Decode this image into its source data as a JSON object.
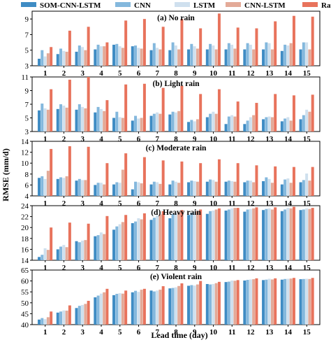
{
  "legend": [
    {
      "name": "SOM-CNN-LSTM",
      "color": "#3f8cc4"
    },
    {
      "name": "CNN",
      "color": "#84b8dd"
    },
    {
      "name": "LSTM",
      "color": "#cfe0ee"
    },
    {
      "name": "CNN-LSTM",
      "color": "#e3aa98"
    },
    {
      "name": "Raw",
      "color": "#e8735c"
    }
  ],
  "ylabel": "RMSE (mm/d)",
  "xlabel": "Lead time (day)",
  "chart_data": [
    {
      "type": "bar",
      "title": "(a) No rain",
      "categories": [
        "1",
        "2",
        "3",
        "4",
        "5",
        "6",
        "7",
        "8",
        "9",
        "10",
        "11",
        "12",
        "13",
        "14",
        "15"
      ],
      "ylim": [
        3,
        10
      ],
      "yticks": [
        3,
        5,
        7,
        9
      ],
      "series": [
        {
          "name": "SOM-CNN-LSTM",
          "values": [
            3.9,
            4.5,
            4.8,
            5.1,
            5.7,
            5.5,
            5.0,
            5.0,
            5.1,
            5.1,
            5.1,
            5.1,
            5.1,
            4.9,
            5.1
          ]
        },
        {
          "name": "CNN",
          "values": [
            5.0,
            5.2,
            5.6,
            5.7,
            5.8,
            5.6,
            5.9,
            6.0,
            5.8,
            5.8,
            5.9,
            5.9,
            6.0,
            5.7,
            6.0
          ]
        },
        {
          "name": "LSTM",
          "values": [
            4.2,
            4.9,
            5.4,
            5.5,
            5.5,
            5.3,
            5.3,
            5.6,
            5.5,
            5.6,
            5.7,
            5.7,
            5.9,
            5.6,
            6.0
          ]
        },
        {
          "name": "CNN-LSTM",
          "values": [
            4.6,
            4.8,
            5.0,
            5.5,
            5.3,
            5.2,
            5.1,
            5.1,
            5.2,
            5.1,
            5.2,
            5.1,
            5.1,
            5.9,
            5.1
          ]
        },
        {
          "name": "Raw",
          "values": [
            5.4,
            7.5,
            8.0,
            6.0,
            8.8,
            9.0,
            8.0,
            9.0,
            7.8,
            9.7,
            7.9,
            7.8,
            8.7,
            9.4,
            9.3
          ]
        }
      ]
    },
    {
      "type": "bar",
      "title": "(b) Light rain",
      "categories": [
        "1",
        "2",
        "3",
        "4",
        "5",
        "6",
        "7",
        "8",
        "9",
        "10",
        "11",
        "12",
        "13",
        "14",
        "15"
      ],
      "ylim": [
        3,
        11
      ],
      "yticks": [
        3,
        5,
        7,
        9,
        11
      ],
      "series": [
        {
          "name": "SOM-CNN-LSTM",
          "values": [
            6.1,
            6.3,
            6.2,
            5.8,
            5.0,
            4.6,
            5.3,
            5.5,
            4.4,
            5.1,
            4.1,
            4.1,
            4.8,
            4.5,
            4.8
          ]
        },
        {
          "name": "CNN",
          "values": [
            7.1,
            7.0,
            7.0,
            6.6,
            5.9,
            5.3,
            5.6,
            5.9,
            4.7,
            5.6,
            5.2,
            4.6,
            5.1,
            4.9,
            5.4
          ]
        },
        {
          "name": "LSTM",
          "values": [
            6.4,
            6.8,
            6.6,
            6.3,
            5.1,
            4.9,
            5.8,
            5.8,
            4.5,
            5.9,
            5.4,
            5.1,
            5.2,
            5.1,
            6.2
          ]
        },
        {
          "name": "CNN-LSTM",
          "values": [
            6.2,
            6.5,
            6.4,
            6.0,
            5.0,
            5.0,
            5.6,
            6.0,
            4.8,
            5.6,
            5.2,
            5.4,
            5.1,
            4.6,
            5.9
          ]
        },
        {
          "name": "Raw",
          "values": [
            9.2,
            10.6,
            11.0,
            7.6,
            9.9,
            10.0,
            9.4,
            9.7,
            8.5,
            9.2,
            7.4,
            7.2,
            8.5,
            8.3,
            8.4
          ]
        }
      ]
    },
    {
      "type": "bar",
      "title": "(c) Moderate rain",
      "categories": [
        "1",
        "2",
        "3",
        "4",
        "5",
        "6",
        "7",
        "8",
        "9",
        "10",
        "11",
        "12",
        "13",
        "14",
        "15"
      ],
      "ylim": [
        4,
        14
      ],
      "yticks": [
        4,
        6,
        8,
        10,
        12,
        14
      ],
      "series": [
        {
          "name": "SOM-CNN-LSTM",
          "values": [
            7.3,
            7.1,
            6.8,
            6.0,
            6.1,
            5.2,
            6.1,
            6.1,
            6.5,
            6.6,
            6.6,
            6.5,
            6.7,
            6.1,
            6.5
          ]
        },
        {
          "name": "CNN",
          "values": [
            7.6,
            7.4,
            7.1,
            6.4,
            6.5,
            6.6,
            6.6,
            6.8,
            6.8,
            7.0,
            6.8,
            6.8,
            7.4,
            7.0,
            6.9
          ]
        },
        {
          "name": "LSTM",
          "values": [
            7.1,
            7.3,
            6.9,
            6.4,
            6.4,
            6.5,
            6.5,
            6.6,
            6.7,
            6.9,
            6.7,
            6.8,
            7.1,
            7.2,
            8.1
          ]
        },
        {
          "name": "CNN-LSTM",
          "values": [
            8.6,
            7.6,
            6.9,
            6.1,
            8.8,
            6.3,
            6.2,
            6.4,
            6.6,
            6.6,
            6.6,
            6.5,
            6.4,
            6.4,
            6.8
          ]
        },
        {
          "name": "Raw",
          "values": [
            12.6,
            13.1,
            13.0,
            10.0,
            11.8,
            11.1,
            10.5,
            10.3,
            10.0,
            10.7,
            10.0,
            9.6,
            9.4,
            9.3,
            9.3
          ]
        }
      ]
    },
    {
      "type": "bar",
      "title": "(d) Heavy rain",
      "categories": [
        "1",
        "2",
        "3",
        "4",
        "5",
        "6",
        "7",
        "8",
        "9",
        "10",
        "11",
        "12",
        "13",
        "14",
        "15"
      ],
      "ylim": [
        14,
        24
      ],
      "yticks": [
        14,
        16,
        18,
        20,
        22,
        24
      ],
      "series": [
        {
          "name": "SOM-CNN-LSTM",
          "values": [
            14.6,
            16.0,
            17.5,
            18.4,
            19.6,
            20.8,
            21.4,
            21.7,
            22.3,
            22.5,
            23.1,
            22.9,
            23.2,
            23.0,
            23.2
          ]
        },
        {
          "name": "CNN",
          "values": [
            15.0,
            16.5,
            17.3,
            18.6,
            20.2,
            21.1,
            21.8,
            22.5,
            22.7,
            23.0,
            23.3,
            23.3,
            23.4,
            23.3,
            23.3
          ]
        },
        {
          "name": "LSTM",
          "values": [
            16.2,
            16.8,
            17.6,
            19.1,
            20.6,
            21.7,
            22.2,
            22.6,
            22.9,
            23.1,
            23.5,
            23.4,
            23.5,
            23.6,
            23.5
          ]
        },
        {
          "name": "CNN-LSTM",
          "values": [
            15.9,
            16.4,
            17.7,
            18.8,
            21.0,
            21.5,
            22.4,
            22.8,
            23.0,
            23.3,
            23.6,
            23.5,
            23.3,
            23.5,
            23.4
          ]
        },
        {
          "name": "Raw",
          "values": [
            20.0,
            20.9,
            20.7,
            22.1,
            22.3,
            22.6,
            23.0,
            23.2,
            23.3,
            23.5,
            23.6,
            23.7,
            23.7,
            23.8,
            23.6
          ]
        }
      ]
    },
    {
      "type": "bar",
      "title": "(e) Violent rain",
      "categories": [
        "1",
        "2",
        "3",
        "4",
        "5",
        "6",
        "7",
        "8",
        "9",
        "10",
        "11",
        "12",
        "13",
        "14",
        "15"
      ],
      "ylim": [
        40,
        65
      ],
      "yticks": [
        40,
        45,
        50,
        55,
        60,
        65
      ],
      "series": [
        {
          "name": "SOM-CNN-LSTM",
          "values": [
            42.3,
            45.5,
            47.6,
            52.5,
            53.5,
            54.8,
            55.6,
            56.6,
            57.8,
            58.6,
            59.5,
            60.2,
            60.4,
            60.6,
            60.8
          ]
        },
        {
          "name": "CNN",
          "values": [
            43.0,
            46.0,
            48.6,
            53.3,
            54.1,
            55.5,
            55.2,
            56.8,
            58.1,
            58.4,
            59.7,
            60.5,
            60.6,
            60.9,
            60.9
          ]
        },
        {
          "name": "LSTM",
          "values": [
            42.5,
            46.5,
            49.0,
            54.2,
            54.4,
            55.0,
            55.6,
            57.1,
            57.9,
            58.6,
            60.2,
            60.7,
            61.0,
            61.0,
            61.0
          ]
        },
        {
          "name": "CNN-LSTM",
          "values": [
            43.4,
            46.4,
            49.5,
            54.8,
            54.2,
            56.0,
            56.0,
            57.7,
            58.4,
            59.0,
            60.1,
            60.8,
            60.7,
            61.1,
            60.9
          ]
        },
        {
          "name": "Raw",
          "values": [
            46.0,
            48.8,
            50.9,
            56.4,
            55.6,
            56.4,
            57.6,
            58.9,
            60.0,
            59.6,
            60.4,
            61.2,
            61.2,
            61.4,
            61.4
          ]
        }
      ]
    }
  ]
}
